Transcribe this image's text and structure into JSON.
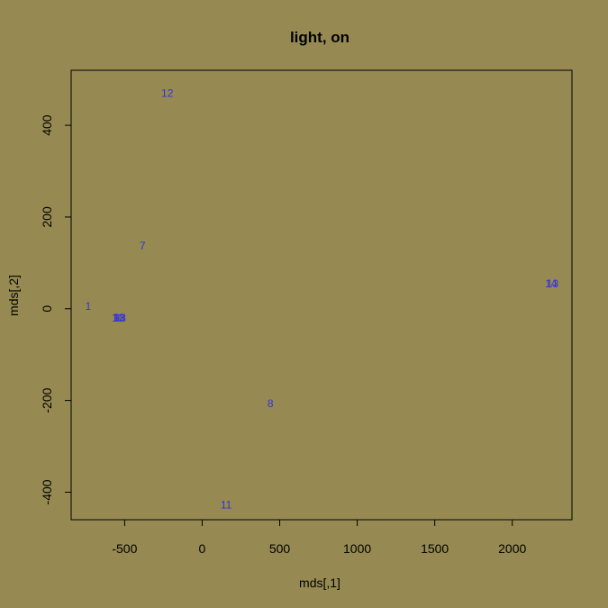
{
  "colors": {
    "background": "#968a52",
    "points": "#3333dd",
    "axes": "#000000"
  },
  "chart_data": {
    "type": "scatter",
    "title": "light, on",
    "xlabel": "mds[,1]",
    "ylabel": "mds[,2]",
    "xlim": [
      -845,
      2385
    ],
    "ylim": [
      -460,
      520
    ],
    "xticks": [
      -500,
      0,
      500,
      1000,
      1500,
      2000
    ],
    "yticks": [
      -400,
      -200,
      0,
      200,
      400
    ],
    "grid": false,
    "points": [
      {
        "label": "1",
        "x": -735,
        "y": 5
      },
      {
        "label": "12",
        "x": -225,
        "y": 470
      },
      {
        "label": "7",
        "x": -385,
        "y": 137
      },
      {
        "label": "8",
        "x": 440,
        "y": -207
      },
      {
        "label": "11",
        "x": 155,
        "y": -428
      },
      {
        "label": "14",
        "x": 2250,
        "y": 55
      },
      {
        "label": "13",
        "x": 2260,
        "y": 55
      },
      {
        "label": "9",
        "x": -550,
        "y": -20
      },
      {
        "label": "18",
        "x": -535,
        "y": -20
      },
      {
        "label": "10",
        "x": -545,
        "y": -20
      },
      {
        "label": "13",
        "x": -530,
        "y": -20
      }
    ]
  }
}
